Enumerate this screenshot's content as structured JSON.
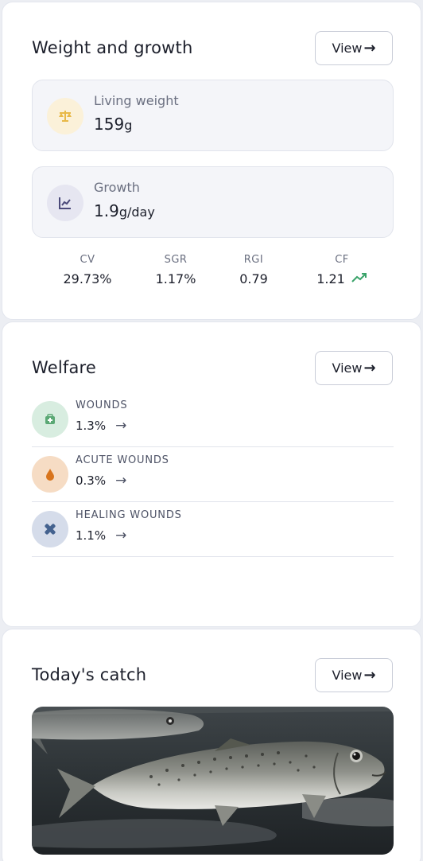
{
  "weight_growth": {
    "title": "Weight and growth",
    "view_label": "View",
    "living_weight": {
      "label": "Living weight",
      "value": "159",
      "unit": "g",
      "icon": "scale-icon"
    },
    "growth": {
      "label": "Growth",
      "value": "1.9",
      "unit": "g/day",
      "icon": "line-chart-icon"
    },
    "stats": [
      {
        "label": "CV",
        "value": "29.73%"
      },
      {
        "label": "SGR",
        "value": "1.17%"
      },
      {
        "label": "RGI",
        "value": "0.79"
      },
      {
        "label": "CF",
        "value": "1.21",
        "trend": "trending-up-icon"
      }
    ]
  },
  "welfare": {
    "title": "Welfare",
    "view_label": "View",
    "items": [
      {
        "label": "WOUNDS",
        "value": "1.3%",
        "icon": "first-aid-kit-icon",
        "color": "#5aa874",
        "bg": "#d8ede0"
      },
      {
        "label": "ACUTE WOUNDS",
        "value": "0.3%",
        "icon": "drop-icon",
        "color": "#d8741c",
        "bg": "#f6dcc4"
      },
      {
        "label": "HEALING WOUNDS",
        "value": "1.1%",
        "icon": "bandage-cross-icon",
        "color": "#44628f",
        "bg": "#d5dcea"
      }
    ]
  },
  "catch": {
    "title": "Today's catch",
    "view_label": "View"
  },
  "colors": {
    "trend_up": "#3aa36a",
    "weight_icon": "#e8b948",
    "weight_icon_bg": "#fbf1d9",
    "growth_icon": "#4b4a7a",
    "growth_icon_bg": "#e6e6f1"
  }
}
